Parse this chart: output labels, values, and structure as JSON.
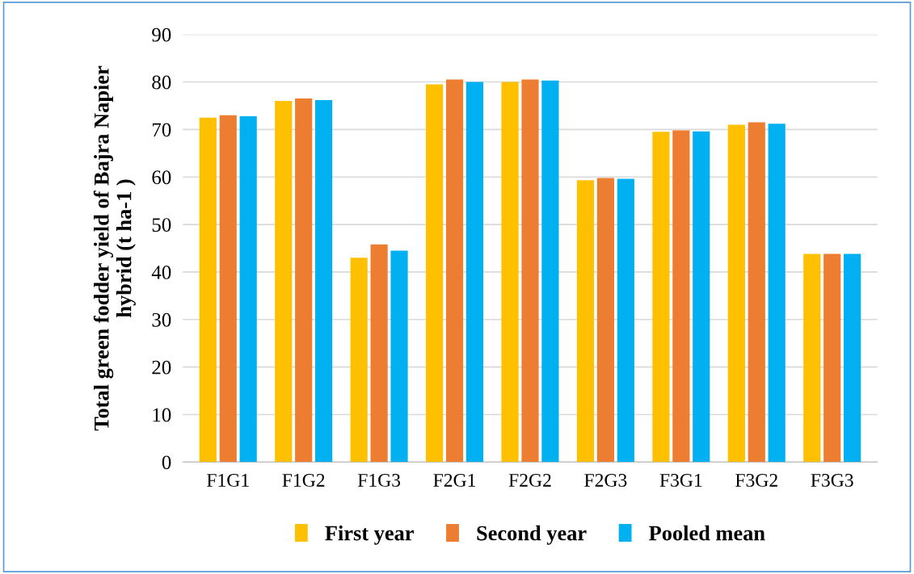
{
  "chart_data": {
    "type": "bar",
    "ylabel": "Total green fodder yield of Bajra Napier\nhybrid (t ha-1 )",
    "categories": [
      "F1G1",
      "F1G2",
      "F1G3",
      "F2G1",
      "F2G2",
      "F2G3",
      "F3G1",
      "F3G2",
      "F3G3"
    ],
    "series": [
      {
        "name": "First year",
        "color": "#ffc000",
        "values": [
          72.5,
          76,
          43,
          79.5,
          80,
          59.3,
          69.5,
          71,
          43.8
        ]
      },
      {
        "name": "Second year",
        "color": "#ed7d31",
        "values": [
          73,
          76.5,
          45.8,
          80.5,
          80.5,
          59.8,
          69.8,
          71.5,
          43.8
        ]
      },
      {
        "name": "Pooled mean",
        "color": "#00b0f0",
        "values": [
          72.8,
          76.2,
          44.5,
          80,
          80.3,
          59.6,
          69.6,
          71.2,
          43.8
        ]
      }
    ],
    "ylim": [
      0,
      90
    ],
    "yticks": [
      0,
      10,
      20,
      30,
      40,
      50,
      60,
      70,
      80,
      90
    ],
    "grid": "y",
    "legend": "bottom"
  }
}
